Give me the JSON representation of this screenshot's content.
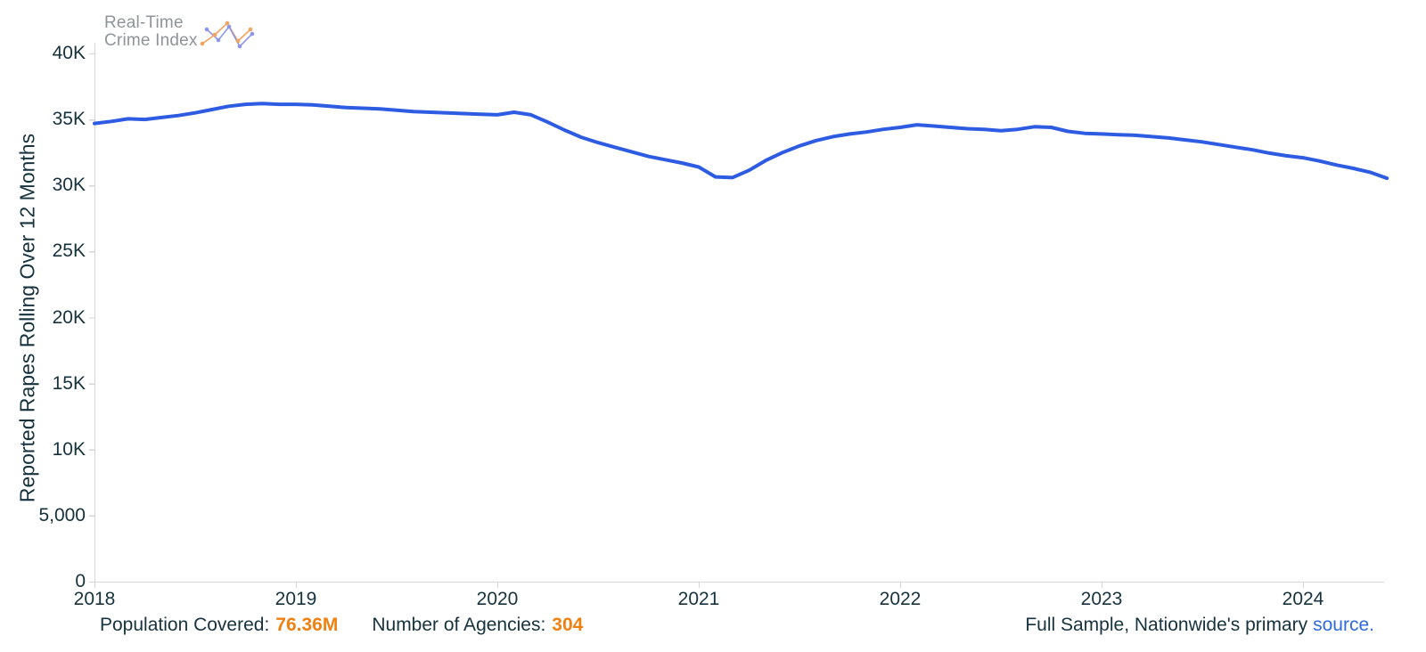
{
  "logo": {
    "line1": "Real-Time",
    "line2": "Crime Index"
  },
  "chart_data": {
    "type": "line",
    "title": "",
    "xlabel": "",
    "ylabel": "Reported Rapes Rolling Over 12 Months",
    "ylim": [
      0,
      40000
    ],
    "grid": false,
    "legend": "none",
    "line_color": "#2d5ce2",
    "y_ticks": [
      {
        "value": 0,
        "label": "0"
      },
      {
        "value": 5000,
        "label": "5,000"
      },
      {
        "value": 10000,
        "label": "10K"
      },
      {
        "value": 15000,
        "label": "15K"
      },
      {
        "value": 20000,
        "label": "20K"
      },
      {
        "value": 25000,
        "label": "25K"
      },
      {
        "value": 30000,
        "label": "30K"
      },
      {
        "value": 35000,
        "label": "35K"
      },
      {
        "value": 40000,
        "label": "40K"
      }
    ],
    "x_ticks": [
      "2018",
      "2019",
      "2020",
      "2021",
      "2022",
      "2023",
      "2024"
    ],
    "series": [
      {
        "name": "Reported Rapes Rolling Over 12 Months",
        "frequency": "monthly",
        "start": "2018-01",
        "end": "2024-06",
        "values": [
          34700,
          34850,
          35050,
          35000,
          35150,
          35300,
          35500,
          35750,
          36000,
          36150,
          36200,
          36150,
          36150,
          36100,
          36000,
          35900,
          35850,
          35800,
          35700,
          35600,
          35550,
          35500,
          35450,
          35400,
          35350,
          35550,
          35350,
          34800,
          34200,
          33650,
          33250,
          32900,
          32550,
          32200,
          31950,
          31700,
          31400,
          30650,
          30600,
          31150,
          31900,
          32500,
          33000,
          33400,
          33700,
          33900,
          34050,
          34250,
          34400,
          34600,
          34500,
          34400,
          34300,
          34250,
          34150,
          34250,
          34450,
          34400,
          34100,
          33950,
          33900,
          33850,
          33800,
          33700,
          33600,
          33450,
          33300,
          33100,
          32900,
          32700,
          32450,
          32250,
          32100,
          31850,
          31550,
          31300,
          31000,
          30550
        ]
      }
    ]
  },
  "footer": {
    "population_label": "Population Covered:",
    "population_value": "76.36M",
    "agencies_label": "Number of Agencies:",
    "agencies_value": "304",
    "sample_text": "Full Sample, Nationwide's primary",
    "source_link": "source",
    "source_suffix": "."
  },
  "colors": {
    "line": "#2d5ce2",
    "text": "#16323e",
    "stat_value": "#ef8113",
    "link": "#2e6be0",
    "axis": "#d5d5d5",
    "logo_text": "#8e9499",
    "logo_orange": "#f2a45f",
    "logo_blue": "#8d96e8"
  }
}
